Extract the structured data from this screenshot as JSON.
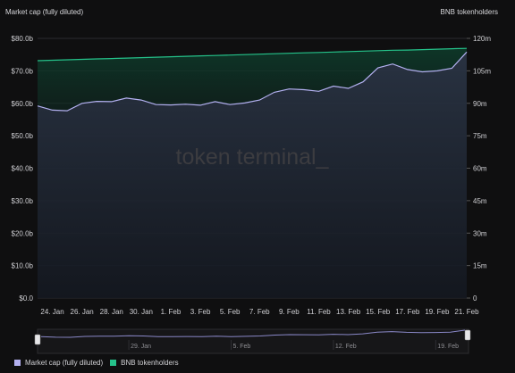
{
  "header": {
    "left_axis_title": "Market cap (fully diluted)",
    "right_axis_title": "BNB tokenholders"
  },
  "watermark": "token terminal_",
  "colors": {
    "market_cap": "#b3b0f0",
    "tokenholders": "#25c28a",
    "background": "#0f0f10"
  },
  "chart_data": {
    "type": "line",
    "x": [
      "23. Jan",
      "24. Jan",
      "25. Jan",
      "26. Jan",
      "27. Jan",
      "28. Jan",
      "29. Jan",
      "30. Jan",
      "31. Jan",
      "1. Feb",
      "2. Feb",
      "3. Feb",
      "4. Feb",
      "5. Feb",
      "6. Feb",
      "7. Feb",
      "8. Feb",
      "9. Feb",
      "10. Feb",
      "11. Feb",
      "12. Feb",
      "13. Feb",
      "14. Feb",
      "15. Feb",
      "16. Feb",
      "17. Feb",
      "18. Feb",
      "19. Feb",
      "20. Feb",
      "21. Feb"
    ],
    "x_tick_labels": [
      "24. Jan",
      "26. Jan",
      "28. Jan",
      "30. Jan",
      "1. Feb",
      "3. Feb",
      "5. Feb",
      "7. Feb",
      "9. Feb",
      "11. Feb",
      "13. Feb",
      "15. Feb",
      "17. Feb",
      "19. Feb",
      "21. Feb"
    ],
    "y_left": {
      "ticks": [
        "$0.0",
        "$10.0b",
        "$20.0b",
        "$30.0b",
        "$40.0b",
        "$50.0b",
        "$60.0b",
        "$70.0b",
        "$80.0b"
      ],
      "lim": [
        0,
        80
      ]
    },
    "y_right": {
      "ticks": [
        "0",
        "15m",
        "30m",
        "45m",
        "60m",
        "75m",
        "90m",
        "105m",
        "120m"
      ],
      "lim": [
        0,
        120
      ]
    },
    "series": [
      {
        "name": "Market cap (fully diluted)",
        "axis": "left",
        "unit": "billion USD",
        "values": [
          59.2,
          57.9,
          57.7,
          60.0,
          60.6,
          60.5,
          61.6,
          61.0,
          59.6,
          59.5,
          59.7,
          59.4,
          60.5,
          59.6,
          60.1,
          61.0,
          63.4,
          64.4,
          64.2,
          63.7,
          65.3,
          64.6,
          66.6,
          70.9,
          72.1,
          70.4,
          69.7,
          70.0,
          70.8,
          75.8
        ]
      },
      {
        "name": "BNB tokenholders",
        "axis": "right",
        "unit": "million",
        "values": [
          109.7,
          109.9,
          110.1,
          110.3,
          110.5,
          110.7,
          110.9,
          111.1,
          111.3,
          111.5,
          111.7,
          111.9,
          112.1,
          112.3,
          112.5,
          112.7,
          112.9,
          113.1,
          113.3,
          113.5,
          113.7,
          113.9,
          114.1,
          114.3,
          114.5,
          114.6,
          114.8,
          115.0,
          115.2,
          115.4
        ]
      }
    ]
  },
  "navigator": {
    "labels": [
      "29. Jan",
      "5. Feb",
      "12. Feb",
      "19. Feb"
    ]
  },
  "legend": [
    {
      "label": "Market cap (fully diluted)",
      "color": "#b3b0f0"
    },
    {
      "label": "BNB tokenholders",
      "color": "#25c28a"
    }
  ]
}
